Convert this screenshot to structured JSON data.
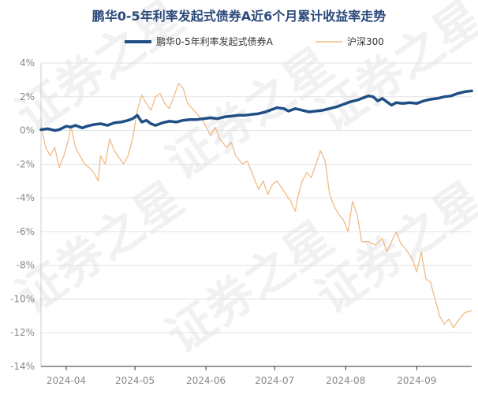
{
  "chart_data": {
    "type": "line",
    "title": "鹏华0-5年利率发起式债券A近6个月累计收益率走势",
    "xlabel": "",
    "ylabel": "",
    "ylim": [
      -14,
      4
    ],
    "yticks": [
      4,
      2,
      0,
      -2,
      -4,
      -6,
      -8,
      -10,
      -12,
      -14
    ],
    "ytick_labels": [
      "4%",
      "2%",
      "0%",
      "-2%",
      "-4%",
      "-6%",
      "-8%",
      "-10%",
      "-12%",
      "-14%"
    ],
    "xlim": [
      "2024-03-21",
      "2024-09-25"
    ],
    "xticks": [
      "2024-04-01",
      "2024-05-01",
      "2024-06-01",
      "2024-07-01",
      "2024-08-01",
      "2024-09-01"
    ],
    "xtick_labels": [
      "2024-04",
      "2024-05",
      "2024-06",
      "2024-07",
      "2024-08",
      "2024-09"
    ],
    "grid": true,
    "legend_position": "top",
    "watermark": "证券之星",
    "series": [
      {
        "name": "鹏华0-5年利率发起式债券A",
        "color": "#1f4e85",
        "points": [
          [
            "2024-03-21",
            0.05
          ],
          [
            "2024-03-24",
            0.1
          ],
          [
            "2024-03-27",
            0.0
          ],
          [
            "2024-03-29",
            0.05
          ],
          [
            "2024-04-01",
            0.25
          ],
          [
            "2024-04-03",
            0.2
          ],
          [
            "2024-04-05",
            0.3
          ],
          [
            "2024-04-08",
            0.15
          ],
          [
            "2024-04-10",
            0.25
          ],
          [
            "2024-04-13",
            0.35
          ],
          [
            "2024-04-16",
            0.4
          ],
          [
            "2024-04-19",
            0.3
          ],
          [
            "2024-04-22",
            0.45
          ],
          [
            "2024-04-25",
            0.5
          ],
          [
            "2024-04-28",
            0.6
          ],
          [
            "2024-04-30",
            0.7
          ],
          [
            "2024-05-02",
            0.9
          ],
          [
            "2024-05-04",
            0.5
          ],
          [
            "2024-05-06",
            0.6
          ],
          [
            "2024-05-08",
            0.4
          ],
          [
            "2024-05-10",
            0.3
          ],
          [
            "2024-05-13",
            0.45
          ],
          [
            "2024-05-16",
            0.55
          ],
          [
            "2024-05-19",
            0.5
          ],
          [
            "2024-05-22",
            0.6
          ],
          [
            "2024-05-25",
            0.65
          ],
          [
            "2024-05-28",
            0.65
          ],
          [
            "2024-05-31",
            0.7
          ],
          [
            "2024-06-03",
            0.75
          ],
          [
            "2024-06-06",
            0.7
          ],
          [
            "2024-06-09",
            0.8
          ],
          [
            "2024-06-12",
            0.85
          ],
          [
            "2024-06-15",
            0.9
          ],
          [
            "2024-06-18",
            0.9
          ],
          [
            "2024-06-21",
            0.95
          ],
          [
            "2024-06-24",
            1.0
          ],
          [
            "2024-06-27",
            1.1
          ],
          [
            "2024-06-30",
            1.25
          ],
          [
            "2024-07-02",
            1.35
          ],
          [
            "2024-07-05",
            1.3
          ],
          [
            "2024-07-07",
            1.15
          ],
          [
            "2024-07-10",
            1.3
          ],
          [
            "2024-07-13",
            1.2
          ],
          [
            "2024-07-16",
            1.1
          ],
          [
            "2024-07-19",
            1.15
          ],
          [
            "2024-07-22",
            1.2
          ],
          [
            "2024-07-25",
            1.3
          ],
          [
            "2024-07-28",
            1.4
          ],
          [
            "2024-07-31",
            1.55
          ],
          [
            "2024-08-03",
            1.7
          ],
          [
            "2024-08-06",
            1.8
          ],
          [
            "2024-08-09",
            1.95
          ],
          [
            "2024-08-11",
            2.05
          ],
          [
            "2024-08-13",
            2.0
          ],
          [
            "2024-08-15",
            1.75
          ],
          [
            "2024-08-17",
            1.9
          ],
          [
            "2024-08-19",
            1.7
          ],
          [
            "2024-08-21",
            1.5
          ],
          [
            "2024-08-23",
            1.65
          ],
          [
            "2024-08-26",
            1.6
          ],
          [
            "2024-08-29",
            1.65
          ],
          [
            "2024-09-01",
            1.6
          ],
          [
            "2024-09-04",
            1.75
          ],
          [
            "2024-09-07",
            1.85
          ],
          [
            "2024-09-10",
            1.9
          ],
          [
            "2024-09-13",
            2.0
          ],
          [
            "2024-09-16",
            2.05
          ],
          [
            "2024-09-19",
            2.2
          ],
          [
            "2024-09-22",
            2.3
          ],
          [
            "2024-09-25",
            2.35
          ]
        ]
      },
      {
        "name": "沪深300",
        "color": "#f0bb86",
        "points": [
          [
            "2024-03-21",
            0.3
          ],
          [
            "2024-03-23",
            -1.0
          ],
          [
            "2024-03-25",
            -1.5
          ],
          [
            "2024-03-27",
            -1.0
          ],
          [
            "2024-03-29",
            -2.2
          ],
          [
            "2024-03-31",
            -1.5
          ],
          [
            "2024-04-02",
            -0.5
          ],
          [
            "2024-04-03",
            0.3
          ],
          [
            "2024-04-05",
            -1.0
          ],
          [
            "2024-04-07",
            -1.5
          ],
          [
            "2024-04-09",
            -2.0
          ],
          [
            "2024-04-11",
            -2.2
          ],
          [
            "2024-04-13",
            -2.5
          ],
          [
            "2024-04-15",
            -3.0
          ],
          [
            "2024-04-16",
            -1.5
          ],
          [
            "2024-04-18",
            -2.0
          ],
          [
            "2024-04-20",
            -0.5
          ],
          [
            "2024-04-22",
            -1.2
          ],
          [
            "2024-04-24",
            -1.6
          ],
          [
            "2024-04-26",
            -2.0
          ],
          [
            "2024-04-28",
            -1.5
          ],
          [
            "2024-04-30",
            -0.5
          ],
          [
            "2024-05-02",
            1.2
          ],
          [
            "2024-05-04",
            2.1
          ],
          [
            "2024-05-06",
            1.6
          ],
          [
            "2024-05-08",
            1.2
          ],
          [
            "2024-05-10",
            2.0
          ],
          [
            "2024-05-12",
            2.2
          ],
          [
            "2024-05-14",
            1.6
          ],
          [
            "2024-05-16",
            1.3
          ],
          [
            "2024-05-18",
            2.0
          ],
          [
            "2024-05-20",
            2.8
          ],
          [
            "2024-05-22",
            2.5
          ],
          [
            "2024-05-24",
            1.6
          ],
          [
            "2024-05-26",
            1.3
          ],
          [
            "2024-05-28",
            1.0
          ],
          [
            "2024-05-31",
            0.5
          ],
          [
            "2024-06-03",
            -0.3
          ],
          [
            "2024-06-05",
            0.2
          ],
          [
            "2024-06-07",
            -0.5
          ],
          [
            "2024-06-10",
            -1.0
          ],
          [
            "2024-06-12",
            -0.7
          ],
          [
            "2024-06-14",
            -1.5
          ],
          [
            "2024-06-17",
            -2.0
          ],
          [
            "2024-06-19",
            -1.8
          ],
          [
            "2024-06-21",
            -2.5
          ],
          [
            "2024-06-24",
            -3.5
          ],
          [
            "2024-06-26",
            -3.0
          ],
          [
            "2024-06-28",
            -3.8
          ],
          [
            "2024-06-30",
            -3.2
          ],
          [
            "2024-07-02",
            -3.0
          ],
          [
            "2024-07-05",
            -3.6
          ],
          [
            "2024-07-08",
            -4.2
          ],
          [
            "2024-07-10",
            -4.8
          ],
          [
            "2024-07-11",
            -4.0
          ],
          [
            "2024-07-13",
            -3.0
          ],
          [
            "2024-07-15",
            -2.5
          ],
          [
            "2024-07-17",
            -2.8
          ],
          [
            "2024-07-19",
            -2.0
          ],
          [
            "2024-07-21",
            -1.2
          ],
          [
            "2024-07-23",
            -1.8
          ],
          [
            "2024-07-25",
            -3.8
          ],
          [
            "2024-07-27",
            -4.5
          ],
          [
            "2024-07-29",
            -5.0
          ],
          [
            "2024-07-31",
            -5.3
          ],
          [
            "2024-08-02",
            -6.0
          ],
          [
            "2024-08-04",
            -4.2
          ],
          [
            "2024-08-06",
            -5.0
          ],
          [
            "2024-08-08",
            -6.6
          ],
          [
            "2024-08-11",
            -6.6
          ],
          [
            "2024-08-14",
            -6.8
          ],
          [
            "2024-08-17",
            -6.4
          ],
          [
            "2024-08-19",
            -7.2
          ],
          [
            "2024-08-21",
            -6.6
          ],
          [
            "2024-08-23",
            -6.0
          ],
          [
            "2024-08-25",
            -6.7
          ],
          [
            "2024-08-27",
            -7.0
          ],
          [
            "2024-08-30",
            -7.6
          ],
          [
            "2024-09-01",
            -8.4
          ],
          [
            "2024-09-03",
            -7.2
          ],
          [
            "2024-09-05",
            -8.8
          ],
          [
            "2024-09-07",
            -9.0
          ],
          [
            "2024-09-09",
            -10.0
          ],
          [
            "2024-09-11",
            -11.0
          ],
          [
            "2024-09-13",
            -11.5
          ],
          [
            "2024-09-15",
            -11.2
          ],
          [
            "2024-09-17",
            -11.7
          ],
          [
            "2024-09-19",
            -11.3
          ],
          [
            "2024-09-22",
            -10.8
          ],
          [
            "2024-09-25",
            -10.7
          ]
        ]
      }
    ]
  }
}
